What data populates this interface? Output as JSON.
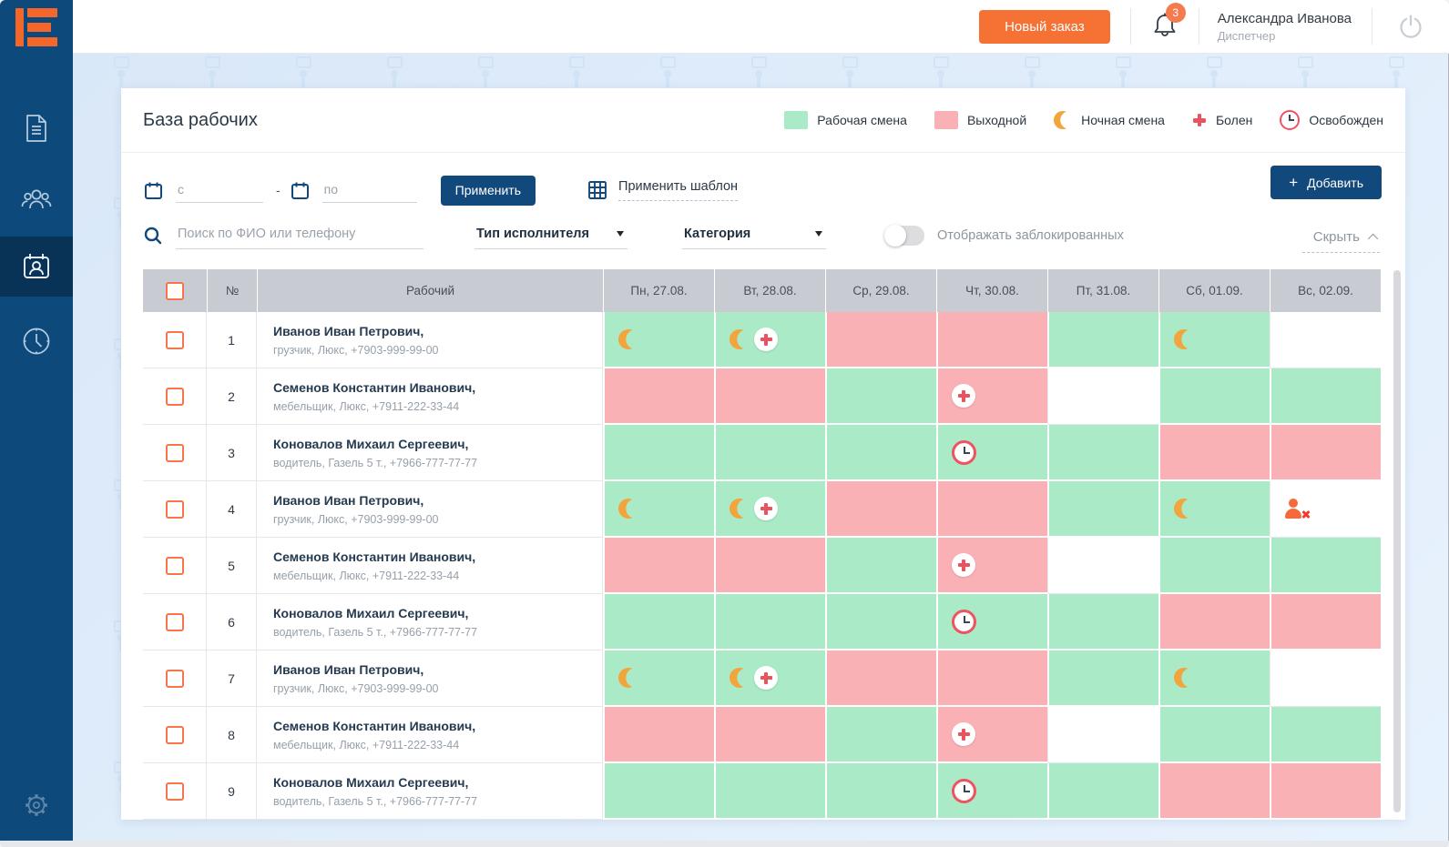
{
  "header": {
    "new_order_button": "Новый заказ",
    "notifications_count": "3",
    "user_name": "Александра Иванова",
    "user_role": "Диспетчер"
  },
  "sidebar": {
    "items": [
      {
        "icon": "orders-document-icon"
      },
      {
        "icon": "workers-group-icon"
      },
      {
        "icon": "worker-schedule-icon",
        "active": true
      },
      {
        "icon": "history-clock-icon"
      },
      {
        "icon": "settings-gear-icon"
      }
    ]
  },
  "page": {
    "title": "База рабочих",
    "legend": [
      {
        "label": "Рабочая смена",
        "icon": "swatch-green"
      },
      {
        "label": "Выходной",
        "icon": "swatch-pink"
      },
      {
        "label": "Ночная смена",
        "icon": "moon"
      },
      {
        "label": "Болен",
        "icon": "cross"
      },
      {
        "label": "Освобожден",
        "icon": "clock"
      }
    ],
    "filters": {
      "date_from_placeholder": "с",
      "date_separator": "-",
      "date_to_placeholder": "по",
      "apply_button": "Применить",
      "apply_template": "Применить шаблон",
      "add_plus": "+",
      "add_button": "Добавить",
      "search_placeholder": "Поиск по ФИО или телефону",
      "type_select": "Тип исполнителя",
      "category_select": "Категория",
      "show_blocked_label": "Отображать заблокированных",
      "hide_label": "Скрыть"
    },
    "table": {
      "columns": [
        "№",
        "Рабочий",
        "Пн, 27.08.",
        "Вт, 28.08.",
        "Ср, 29.08.",
        "Чт, 30.08.",
        "Пт, 31.08.",
        "Сб, 01.09.",
        "Вс, 02.09."
      ],
      "rows": [
        {
          "num": "1",
          "name": "Иванов Иван Петрович,",
          "details": "грузчик, Люкс,  +7903-999-99-00",
          "days": [
            {
              "bg": "green",
              "icons": [
                "moon"
              ]
            },
            {
              "bg": "green",
              "icons": [
                "moon",
                "sick"
              ]
            },
            {
              "bg": "pink",
              "icons": []
            },
            {
              "bg": "pink",
              "icons": []
            },
            {
              "bg": "green",
              "icons": []
            },
            {
              "bg": "green",
              "icons": [
                "moon"
              ]
            },
            {
              "bg": "white",
              "icons": []
            }
          ]
        },
        {
          "num": "2",
          "name": "Семенов Константин Иванович,",
          "details": "мебельщик, Люкс,  +7911-222-33-44",
          "days": [
            {
              "bg": "pink",
              "icons": []
            },
            {
              "bg": "pink",
              "icons": []
            },
            {
              "bg": "green",
              "icons": []
            },
            {
              "bg": "pink",
              "icons": [
                "sick"
              ]
            },
            {
              "bg": "white",
              "icons": []
            },
            {
              "bg": "green",
              "icons": []
            },
            {
              "bg": "green",
              "icons": []
            }
          ]
        },
        {
          "num": "3",
          "name": "Коновалов Михаил Сергеевич,",
          "details": "водитель, Газель 5 т.,  +7966-777-77-77",
          "days": [
            {
              "bg": "green",
              "icons": []
            },
            {
              "bg": "green",
              "icons": []
            },
            {
              "bg": "green",
              "icons": []
            },
            {
              "bg": "green",
              "icons": [
                "clock"
              ]
            },
            {
              "bg": "green",
              "icons": []
            },
            {
              "bg": "pink",
              "icons": []
            },
            {
              "bg": "pink",
              "icons": []
            }
          ]
        },
        {
          "num": "4",
          "name": "Иванов Иван Петрович,",
          "details": "грузчик, Люкс,  +7903-999-99-00",
          "days": [
            {
              "bg": "green",
              "icons": [
                "moon"
              ]
            },
            {
              "bg": "green",
              "icons": [
                "moon",
                "sick"
              ]
            },
            {
              "bg": "pink",
              "icons": []
            },
            {
              "bg": "pink",
              "icons": []
            },
            {
              "bg": "green",
              "icons": []
            },
            {
              "bg": "green",
              "icons": [
                "moon"
              ]
            },
            {
              "bg": "white",
              "icons": [
                "personx"
              ]
            }
          ]
        },
        {
          "num": "5",
          "name": "Семенов Константин Иванович,",
          "details": "мебельщик, Люкс,  +7911-222-33-44",
          "days": [
            {
              "bg": "pink",
              "icons": []
            },
            {
              "bg": "pink",
              "icons": []
            },
            {
              "bg": "green",
              "icons": []
            },
            {
              "bg": "pink",
              "icons": [
                "sick"
              ]
            },
            {
              "bg": "white",
              "icons": []
            },
            {
              "bg": "green",
              "icons": []
            },
            {
              "bg": "green",
              "icons": []
            }
          ]
        },
        {
          "num": "6",
          "name": "Коновалов Михаил Сергеевич,",
          "details": "водитель, Газель 5 т.,  +7966-777-77-77",
          "days": [
            {
              "bg": "green",
              "icons": []
            },
            {
              "bg": "green",
              "icons": []
            },
            {
              "bg": "green",
              "icons": []
            },
            {
              "bg": "green",
              "icons": [
                "clock"
              ]
            },
            {
              "bg": "green",
              "icons": []
            },
            {
              "bg": "pink",
              "icons": []
            },
            {
              "bg": "pink",
              "icons": []
            }
          ]
        },
        {
          "num": "7",
          "name": "Иванов Иван Петрович,",
          "details": "грузчик, Люкс,  +7903-999-99-00",
          "days": [
            {
              "bg": "green",
              "icons": [
                "moon"
              ]
            },
            {
              "bg": "green",
              "icons": [
                "moon",
                "sick"
              ]
            },
            {
              "bg": "pink",
              "icons": []
            },
            {
              "bg": "pink",
              "icons": []
            },
            {
              "bg": "green",
              "icons": []
            },
            {
              "bg": "green",
              "icons": [
                "moon"
              ]
            },
            {
              "bg": "white",
              "icons": []
            }
          ]
        },
        {
          "num": "8",
          "name": "Семенов Константин Иванович,",
          "details": "мебельщик, Люкс,  +7911-222-33-44",
          "days": [
            {
              "bg": "pink",
              "icons": []
            },
            {
              "bg": "pink",
              "icons": []
            },
            {
              "bg": "green",
              "icons": []
            },
            {
              "bg": "pink",
              "icons": [
                "sick"
              ]
            },
            {
              "bg": "white",
              "icons": []
            },
            {
              "bg": "green",
              "icons": []
            },
            {
              "bg": "green",
              "icons": []
            }
          ]
        },
        {
          "num": "9",
          "name": "Коновалов Михаил Сергеевич,",
          "details": "водитель, Газель 5 т.,  +7966-777-77-77",
          "days": [
            {
              "bg": "green",
              "icons": []
            },
            {
              "bg": "green",
              "icons": []
            },
            {
              "bg": "green",
              "icons": []
            },
            {
              "bg": "green",
              "icons": [
                "clock"
              ]
            },
            {
              "bg": "green",
              "icons": []
            },
            {
              "bg": "pink",
              "icons": []
            },
            {
              "bg": "pink",
              "icons": []
            }
          ]
        }
      ]
    }
  },
  "colors": {
    "accent_orange": "#f57134",
    "navy_button": "#11497d",
    "sidebar": "#0d4a7b",
    "work_shift_green": "#aaeac6",
    "day_off_pink": "#f9b1b6",
    "night_moon_orange": "#f2a53d",
    "sick_red": "#e8535f"
  }
}
